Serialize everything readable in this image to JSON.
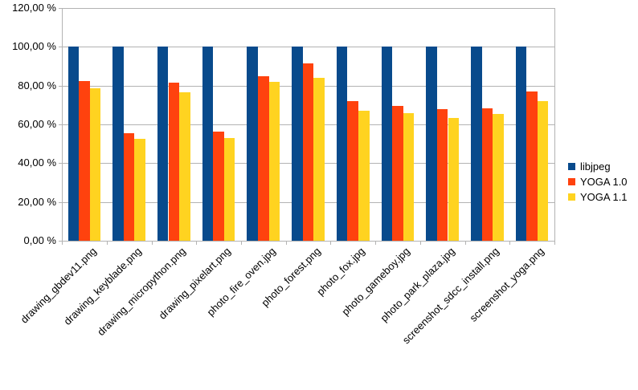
{
  "chart_data": {
    "type": "bar",
    "title": "",
    "xlabel": "",
    "ylabel": "",
    "categories": [
      "drawing_gbdev11.png",
      "drawing_keyblade.png",
      "drawing_micropython.png",
      "drawing_pixelart.png",
      "photo_fire_oven.jpg",
      "photo_forest.png",
      "photo_fox.jpg",
      "photo_gameboy.jpg",
      "photo_park_plaza.jpg",
      "screenshot_sdcc_install.png",
      "screenshot_yoga.png"
    ],
    "series": [
      {
        "name": "libjpeg",
        "color": "#084a8c",
        "values": [
          100,
          100,
          100,
          100,
          100,
          100,
          100,
          100,
          100,
          100,
          100
        ]
      },
      {
        "name": "YOGA 1.0",
        "color": "#ff420e",
        "values": [
          82.5,
          55.5,
          81.5,
          56.5,
          85,
          91.5,
          72,
          69.5,
          68,
          68.5,
          77
        ]
      },
      {
        "name": "YOGA 1.1",
        "color": "#ffd320",
        "values": [
          78.5,
          52.5,
          76.5,
          53,
          82,
          84,
          67,
          66,
          63.5,
          65.5,
          72
        ]
      }
    ],
    "y_axis": {
      "min": 0,
      "max": 120,
      "step": 20,
      "tick_labels": [
        "0,00 %",
        "20,00 %",
        "40,00 %",
        "60,00 %",
        "80,00 %",
        "100,00 %",
        "120,00 %"
      ]
    },
    "grid": "horizontal",
    "legend_position": "right",
    "x_label_rotation_deg": 45
  },
  "colors": {
    "background": "#ffffff",
    "gridline": "#b3b3b3",
    "axis": "#b3b3b3",
    "text": "#000000"
  }
}
